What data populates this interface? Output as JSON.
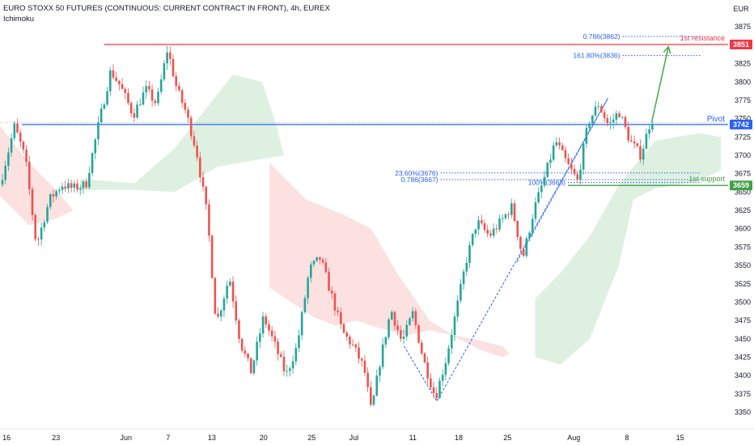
{
  "header": {
    "title": "EURO STOXX 50 FUTURES (CONTINUOUS: CURRENT CONTRACT IN FRONT), 4h, EUREX",
    "indicator": "Ichimoku"
  },
  "colors": {
    "up": "#26a69a",
    "down": "#ef5350",
    "cloud_bull": "#d8eedb",
    "cloud_bear": "#fbdcdc",
    "fib": "#2962ff",
    "resistance": "#f23645",
    "support": "#43a047",
    "pivot": "#2962ff",
    "arrow": "#4caf50"
  },
  "chart_data": {
    "type": "candlestick",
    "currency": "EUR",
    "ylim": [
      3333,
      3905
    ],
    "y_ticks": [
      3350,
      3375,
      3400,
      3425,
      3450,
      3475,
      3500,
      3525,
      3550,
      3575,
      3600,
      3625,
      3650,
      3675,
      3700,
      3725,
      3750,
      3775,
      3800,
      3825,
      3850,
      3875
    ],
    "x_ticks": [
      "16",
      "23",
      "Jun",
      "7",
      "13",
      "20",
      "25",
      "Jul",
      "11",
      "18",
      "25",
      "Aug",
      "8",
      "15"
    ],
    "x_tick_pos": [
      0.009,
      0.077,
      0.173,
      0.231,
      0.291,
      0.362,
      0.428,
      0.486,
      0.567,
      0.63,
      0.697,
      0.788,
      0.861,
      0.934
    ],
    "price_path": [
      [
        0.0,
        3660
      ],
      [
        0.02,
        3740
      ],
      [
        0.035,
        3695
      ],
      [
        0.05,
        3577
      ],
      [
        0.068,
        3640
      ],
      [
        0.085,
        3660
      ],
      [
        0.1,
        3655
      ],
      [
        0.118,
        3660
      ],
      [
        0.135,
        3740
      ],
      [
        0.152,
        3815
      ],
      [
        0.165,
        3795
      ],
      [
        0.183,
        3755
      ],
      [
        0.2,
        3790
      ],
      [
        0.215,
        3770
      ],
      [
        0.23,
        3845
      ],
      [
        0.243,
        3790
      ],
      [
        0.255,
        3760
      ],
      [
        0.27,
        3705
      ],
      [
        0.285,
        3615
      ],
      [
        0.297,
        3470
      ],
      [
        0.315,
        3535
      ],
      [
        0.33,
        3445
      ],
      [
        0.345,
        3405
      ],
      [
        0.362,
        3480
      ],
      [
        0.378,
        3440
      ],
      [
        0.393,
        3400
      ],
      [
        0.408,
        3440
      ],
      [
        0.425,
        3545
      ],
      [
        0.44,
        3560
      ],
      [
        0.455,
        3510
      ],
      [
        0.47,
        3460
      ],
      [
        0.485,
        3440
      ],
      [
        0.5,
        3410
      ],
      [
        0.51,
        3350
      ],
      [
        0.522,
        3420
      ],
      [
        0.537,
        3490
      ],
      [
        0.552,
        3445
      ],
      [
        0.567,
        3485
      ],
      [
        0.582,
        3420
      ],
      [
        0.598,
        3370
      ],
      [
        0.612,
        3420
      ],
      [
        0.627,
        3490
      ],
      [
        0.64,
        3555
      ],
      [
        0.655,
        3610
      ],
      [
        0.672,
        3590
      ],
      [
        0.688,
        3610
      ],
      [
        0.703,
        3630
      ],
      [
        0.718,
        3560
      ],
      [
        0.733,
        3625
      ],
      [
        0.748,
        3670
      ],
      [
        0.763,
        3720
      ],
      [
        0.778,
        3690
      ],
      [
        0.793,
        3665
      ],
      [
        0.808,
        3745
      ],
      [
        0.822,
        3770
      ],
      [
        0.836,
        3740
      ],
      [
        0.85,
        3760
      ],
      [
        0.865,
        3720
      ],
      [
        0.88,
        3700
      ],
      [
        0.893,
        3745
      ],
      [
        0.9,
        3755
      ]
    ],
    "cloud_bull": [
      [
        [
          0.11,
          3668
        ],
        [
          0.185,
          3662
        ],
        [
          0.24,
          3710
        ],
        [
          0.32,
          3810
        ],
        [
          0.36,
          3800
        ],
        [
          0.38,
          3740
        ],
        [
          0.39,
          3700
        ],
        [
          0.3,
          3685
        ],
        [
          0.24,
          3650
        ],
        [
          0.185,
          3653
        ],
        [
          0.11,
          3653
        ]
      ],
      [
        [
          0.735,
          3505
        ],
        [
          0.77,
          3540
        ],
        [
          0.81,
          3590
        ],
        [
          0.85,
          3660
        ],
        [
          0.9,
          3720
        ],
        [
          0.96,
          3730
        ],
        [
          0.99,
          3725
        ],
        [
          0.99,
          3680
        ],
        [
          0.96,
          3665
        ],
        [
          0.9,
          3655
        ],
        [
          0.87,
          3640
        ],
        [
          0.85,
          3550
        ],
        [
          0.81,
          3450
        ],
        [
          0.77,
          3415
        ],
        [
          0.735,
          3425
        ]
      ]
    ],
    "cloud_bear": [
      [
        [
          0.0,
          3740
        ],
        [
          0.04,
          3690
        ],
        [
          0.08,
          3650
        ],
        [
          0.1,
          3625
        ],
        [
          0.08,
          3615
        ],
        [
          0.04,
          3605
        ],
        [
          0.0,
          3645
        ]
      ],
      [
        [
          0.37,
          3690
        ],
        [
          0.42,
          3640
        ],
        [
          0.47,
          3620
        ],
        [
          0.51,
          3600
        ],
        [
          0.545,
          3540
        ],
        [
          0.59,
          3475
        ],
        [
          0.63,
          3450
        ],
        [
          0.66,
          3435
        ],
        [
          0.69,
          3425
        ],
        [
          0.7,
          3430
        ],
        [
          0.69,
          3440
        ],
        [
          0.65,
          3450
        ],
        [
          0.62,
          3455
        ],
        [
          0.59,
          3462
        ],
        [
          0.56,
          3455
        ],
        [
          0.52,
          3465
        ],
        [
          0.49,
          3475
        ],
        [
          0.46,
          3468
        ],
        [
          0.43,
          3480
        ],
        [
          0.4,
          3500
        ],
        [
          0.37,
          3520
        ]
      ]
    ],
    "levels": [
      {
        "name": "1st resistance",
        "price": 3851,
        "label": "3851",
        "color": "#f23645",
        "x_start": 0.143
      },
      {
        "name": "Pivot",
        "price": 3742,
        "label": "3742",
        "color": "#2962ff",
        "x_start": 0.03
      },
      {
        "name": "1st support",
        "price": 3659,
        "label": "3659",
        "color": "#43a047",
        "x_start": 0.78
      }
    ],
    "fib_levels": [
      {
        "label": "0.786(3862)",
        "price": 3862,
        "x1": 0.855,
        "x2": 0.963
      },
      {
        "label": "161.80%(3836)",
        "price": 3836,
        "x1": 0.855,
        "x2": 0.963
      },
      {
        "label": "23.60%(3676)",
        "price": 3676,
        "x1": 0.605,
        "x2": 0.963
      },
      {
        "label": "0.786(3667)",
        "price": 3667,
        "x1": 0.605,
        "x2": 0.963
      },
      {
        "label": "100%(3663)",
        "price": 3663,
        "x1": 0.78,
        "x2": 0.963
      }
    ],
    "dotted_reference": 3745,
    "trend_lines": [
      [
        [
          0.555,
          3440
        ],
        [
          0.6,
          3365
        ],
        [
          0.835,
          3778
        ]
      ],
      [
        [
          0.71,
          3555
        ],
        [
          0.835,
          3778
        ]
      ]
    ],
    "arrow": {
      "from": [
        0.895,
        3745
      ],
      "to": [
        0.918,
        3848
      ]
    }
  }
}
